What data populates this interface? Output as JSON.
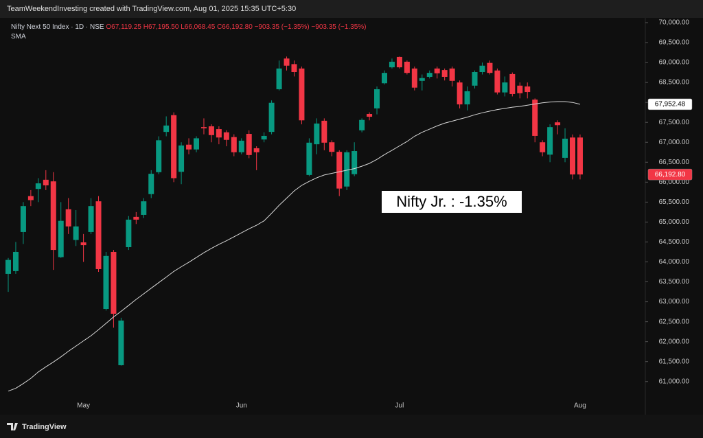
{
  "header": "TeamWeekendInvesting created with TradingView.com, Aug 01, 2025 15:35 UTC+5:30",
  "footer": "TradingView",
  "chart_data": {
    "type": "candlestick",
    "title": "Nifty Next 50 Index · 1D · NSE",
    "ohlc_legend": [
      {
        "key": "O",
        "label": "67,119.25"
      },
      {
        "key": "H",
        "label": "67,195.50"
      },
      {
        "key": "L",
        "label": "66,068.45"
      },
      {
        "key": "C",
        "label": "66,192.80"
      }
    ],
    "change_labels": [
      "−903.35 (−1.35%)",
      "−903.35 (−1.35%)"
    ],
    "annotation": "Nifty Jr. : -1.35%",
    "up_color": "#089981",
    "down_color": "#f23645",
    "sma_color": "#d9d9d9",
    "categories": [
      null,
      null,
      null,
      null,
      null,
      null,
      null,
      null,
      null,
      null,
      "May",
      null,
      null,
      null,
      null,
      null,
      null,
      null,
      null,
      null,
      null,
      null,
      null,
      null,
      null,
      null,
      null,
      null,
      null,
      null,
      null,
      "Jun",
      null,
      null,
      null,
      null,
      null,
      null,
      null,
      null,
      null,
      null,
      null,
      null,
      null,
      null,
      null,
      null,
      null,
      null,
      null,
      null,
      "Jul",
      null,
      null,
      null,
      null,
      null,
      null,
      null,
      null,
      null,
      null,
      null,
      null,
      null,
      null,
      null,
      null,
      null,
      null,
      null,
      null,
      null,
      null,
      null,
      "Aug"
    ],
    "open": [
      63700,
      63770,
      64750,
      65650,
      65830,
      66060,
      66020,
      64120,
      65320,
      64550,
      64490,
      64750,
      65520,
      62820,
      64250,
      61410,
      64370,
      65130,
      65180,
      65700,
      66250,
      67260,
      67680,
      66260,
      66940,
      66820,
      67380,
      67400,
      67330,
      67250,
      67130,
      66750,
      67210,
      66850,
      67070,
      67260,
      68330,
      69100,
      68960,
      68850,
      66180,
      66950,
      67540,
      67000,
      66760,
      65890,
      66200,
      67300,
      67710,
      67850,
      68480,
      68880,
      69140,
      69020,
      68850,
      68540,
      68640,
      68850,
      68810,
      68850,
      68500,
      67950,
      68420,
      68760,
      68990,
      68800,
      68250,
      68710,
      68420,
      68400,
      68070,
      67000,
      66690,
      67500,
      66610,
      67119.25,
      67119.25
    ],
    "high": [
      64100,
      64500,
      65500,
      65800,
      66100,
      66300,
      66250,
      65500,
      65600,
      65300,
      64700,
      65600,
      65650,
      64250,
      64300,
      62600,
      65150,
      65250,
      65600,
      66300,
      67150,
      67650,
      67750,
      67000,
      67100,
      67150,
      67600,
      67450,
      67400,
      67300,
      67200,
      67100,
      67300,
      66900,
      67250,
      68050,
      69050,
      69150,
      69050,
      68900,
      67100,
      67600,
      67600,
      67050,
      66800,
      66800,
      67000,
      67600,
      67750,
      68400,
      68800,
      69100,
      69150,
      69050,
      68900,
      68700,
      68800,
      68900,
      68850,
      68900,
      68550,
      68400,
      68800,
      69000,
      69050,
      68850,
      68650,
      68750,
      68500,
      68500,
      68100,
      67050,
      67450,
      67550,
      67350,
      67195.5,
      67195.5
    ],
    "low": [
      63250,
      63700,
      64450,
      65400,
      65500,
      65800,
      63800,
      64100,
      64700,
      64400,
      64000,
      64700,
      63750,
      62780,
      62350,
      61400,
      64300,
      64950,
      65100,
      65600,
      66200,
      67150,
      66000,
      65950,
      66700,
      66750,
      67200,
      67000,
      66950,
      66900,
      66650,
      66700,
      66600,
      66300,
      67000,
      67200,
      68300,
      68800,
      68650,
      67450,
      66150,
      66700,
      66800,
      66650,
      65650,
      65800,
      66150,
      67250,
      67550,
      67700,
      68450,
      68850,
      68850,
      68700,
      68300,
      68300,
      68600,
      68600,
      68550,
      68400,
      67850,
      67800,
      68350,
      68700,
      68700,
      68200,
      68150,
      68150,
      68100,
      68100,
      67000,
      66650,
      66500,
      67200,
      66500,
      66068.45,
      66068.45
    ],
    "close": [
      64050,
      64250,
      65400,
      65550,
      65970,
      65920,
      64300,
      65030,
      64890,
      64890,
      64420,
      65400,
      63820,
      64150,
      62700,
      62530,
      65060,
      65060,
      65520,
      66210,
      67050,
      67420,
      66100,
      66920,
      66820,
      67100,
      67350,
      67180,
      67120,
      67060,
      66750,
      67040,
      66680,
      66750,
      67160,
      67990,
      68850,
      68920,
      68760,
      67550,
      66990,
      67470,
      66990,
      66760,
      65840,
      66750,
      66780,
      67560,
      67640,
      68330,
      68740,
      69020,
      68880,
      68740,
      68370,
      68610,
      68740,
      68730,
      68640,
      68540,
      67950,
      68280,
      68760,
      68920,
      68740,
      68250,
      68500,
      68210,
      68230,
      68260,
      67160,
      66750,
      67380,
      67430,
      67090,
      66192.8,
      66192.8
    ],
    "sma": {
      "name": "SMA",
      "values": [
        60760,
        60830,
        60950,
        61080,
        61240,
        61370,
        61490,
        61620,
        61760,
        61890,
        62020,
        62150,
        62300,
        62460,
        62620,
        62760,
        62910,
        63060,
        63200,
        63340,
        63480,
        63620,
        63760,
        63880,
        63990,
        64110,
        64230,
        64340,
        64440,
        64530,
        64630,
        64730,
        64830,
        64920,
        65030,
        65220,
        65420,
        65600,
        65780,
        65920,
        66020,
        66110,
        66180,
        66220,
        66260,
        66300,
        66340,
        66400,
        66470,
        66570,
        66690,
        66800,
        66910,
        67020,
        67150,
        67250,
        67330,
        67410,
        67480,
        67530,
        67580,
        67630,
        67690,
        67740,
        67780,
        67820,
        67850,
        67880,
        67900,
        67930,
        67960,
        67990,
        68010,
        68020,
        68020,
        68000,
        67952.48
      ]
    },
    "price_tags": [
      {
        "value": 67952.48,
        "label": "67,952.48"
      },
      {
        "value": 66192.8,
        "label": "66,192.80"
      }
    ],
    "ylim": [
      60600,
      70430
    ],
    "yticks": [
      {
        "value": 61000,
        "label": "61,000.00"
      },
      {
        "value": 61500,
        "label": "61,500.00"
      },
      {
        "value": 62000,
        "label": "62,000.00"
      },
      {
        "value": 62500,
        "label": "62,500.00"
      },
      {
        "value": 63000,
        "label": "63,000.00"
      },
      {
        "value": 63500,
        "label": "63,500.00"
      },
      {
        "value": 64000,
        "label": "64,000.00"
      },
      {
        "value": 64500,
        "label": "64,500.00"
      },
      {
        "value": 65000,
        "label": "65,000.00"
      },
      {
        "value": 65500,
        "label": "65,500.00"
      },
      {
        "value": 66000,
        "label": "66,000.00"
      },
      {
        "value": 66500,
        "label": "66,500.00"
      },
      {
        "value": 67000,
        "label": "67,000.00"
      },
      {
        "value": 67500,
        "label": "67,500.00"
      },
      {
        "value": 68000,
        "label": "68,000.00"
      },
      {
        "value": 68500,
        "label": "68,500.00"
      },
      {
        "value": 69000,
        "label": "69,000.00"
      },
      {
        "value": 69500,
        "label": "69,500.00"
      },
      {
        "value": 70000,
        "label": "70,000.00"
      }
    ]
  }
}
